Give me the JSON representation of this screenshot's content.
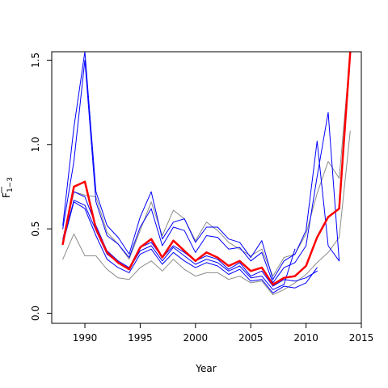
{
  "chart_data": {
    "type": "line",
    "xlabel": "Year",
    "ylabel": "F",
    "ylabel_subscript": "1−3",
    "xlim": [
      1987,
      2015
    ],
    "ylim": [
      -0.06,
      1.55
    ],
    "x_ticks": [
      1990,
      1995,
      2000,
      2005,
      2010,
      2015
    ],
    "y_ticks": [
      0.0,
      0.5,
      1.0,
      1.5
    ],
    "grid": false,
    "colors": {
      "blue": "#0000ff",
      "red": "#ff0000",
      "gray": "#8c8c8c"
    },
    "series": [
      {
        "color": "#8c8c8c",
        "width": 1,
        "x": [
          2013,
          2014
        ],
        "y": [
          0.8,
          1.55
        ]
      },
      {
        "color": "#8c8c8c",
        "width": 1,
        "x": [
          1988,
          1989,
          1990,
          1991,
          1992,
          1993,
          1994,
          1995,
          1996,
          1997,
          1998,
          1999,
          2000,
          2001,
          2002,
          2003,
          2004,
          2005,
          2006,
          2007,
          2008,
          2009,
          2010,
          2011,
          2012,
          2013
        ],
        "y": [
          0.42,
          0.72,
          0.7,
          0.69,
          0.48,
          0.41,
          0.32,
          0.49,
          0.66,
          0.46,
          0.61,
          0.56,
          0.43,
          0.54,
          0.49,
          0.42,
          0.38,
          0.34,
          0.38,
          0.22,
          0.33,
          0.35,
          0.47,
          0.71,
          0.9,
          0.8
        ]
      },
      {
        "color": "#8c8c8c",
        "width": 1,
        "x": [
          1988,
          1989,
          1990,
          1991,
          1992,
          1993,
          1994,
          1995,
          1996,
          1997,
          1998,
          1999,
          2000,
          2001,
          2002,
          2003,
          2004,
          2005,
          2006,
          2007,
          2008,
          2009,
          2010,
          2011,
          2012,
          2013,
          2014
        ],
        "y": [
          0.32,
          0.47,
          0.34,
          0.34,
          0.26,
          0.21,
          0.2,
          0.27,
          0.31,
          0.25,
          0.32,
          0.26,
          0.22,
          0.24,
          0.24,
          0.2,
          0.22,
          0.18,
          0.19,
          0.11,
          0.14,
          0.18,
          0.23,
          0.3,
          0.36,
          0.45,
          1.08
        ]
      },
      {
        "color": "#0000ff",
        "width": 1,
        "x": [
          1988,
          1989,
          1990,
          1991,
          1992,
          1993,
          1994,
          1995,
          1996,
          1997,
          1998,
          1999,
          2000,
          2001,
          2002,
          2003,
          2004,
          2005,
          2006,
          2007,
          2008,
          2009,
          2010,
          2011,
          2012,
          2013
        ],
        "y": [
          0.52,
          1.1,
          1.55,
          0.72,
          0.52,
          0.45,
          0.35,
          0.57,
          0.72,
          0.44,
          0.54,
          0.56,
          0.42,
          0.51,
          0.51,
          0.44,
          0.42,
          0.33,
          0.43,
          0.2,
          0.31,
          0.35,
          0.49,
          1.02,
          0.4,
          0.31
        ]
      },
      {
        "color": "#0000ff",
        "width": 1,
        "x": [
          1988,
          1989,
          1990,
          1991,
          1992,
          1993,
          1994,
          1995,
          1996,
          1997,
          1998,
          1999,
          2000,
          2001,
          2002,
          2003,
          2004,
          2005,
          2006,
          2007,
          2008,
          2009,
          2010,
          2011,
          2012,
          2013
        ],
        "y": [
          0.5,
          0.9,
          1.5,
          0.66,
          0.46,
          0.41,
          0.33,
          0.51,
          0.62,
          0.4,
          0.51,
          0.49,
          0.36,
          0.46,
          0.45,
          0.38,
          0.39,
          0.31,
          0.36,
          0.18,
          0.27,
          0.3,
          0.4,
          0.81,
          1.19,
          0.31
        ]
      },
      {
        "color": "#0000ff",
        "width": 1,
        "x": [
          1988,
          1989,
          1990,
          1991,
          1992,
          1993,
          1994,
          1995,
          1996,
          1997,
          1998,
          1999,
          2000,
          2001,
          2002,
          2003,
          2004,
          2005,
          2006,
          2007,
          2008,
          2009,
          2010,
          2011
        ],
        "y": [
          0.44,
          0.72,
          0.69,
          0.52,
          0.37,
          0.31,
          0.27,
          0.39,
          0.42,
          0.33,
          0.4,
          0.36,
          0.31,
          0.34,
          0.32,
          0.26,
          0.3,
          0.22,
          0.25,
          0.16,
          0.2,
          0.19,
          0.21,
          0.25
        ]
      },
      {
        "color": "#0000ff",
        "width": 1,
        "x": [
          1988,
          1989,
          1990,
          1991,
          1992,
          1993,
          1994,
          1995,
          1996,
          1997,
          1998,
          1999,
          2000,
          2001,
          2002,
          2003,
          2004,
          2005,
          2006,
          2007,
          2008,
          2009
        ],
        "y": [
          0.42,
          0.67,
          0.64,
          0.49,
          0.35,
          0.3,
          0.26,
          0.37,
          0.4,
          0.31,
          0.39,
          0.34,
          0.29,
          0.32,
          0.3,
          0.25,
          0.28,
          0.21,
          0.22,
          0.14,
          0.17,
          0.38
        ]
      },
      {
        "color": "#0000ff",
        "width": 1,
        "x": [
          1988,
          1989,
          1990,
          1991,
          1992,
          1993,
          1994,
          1995,
          1996,
          1997,
          1998,
          1999,
          2000,
          2001,
          2002,
          2003,
          2004,
          2005,
          2006,
          2007,
          2008,
          2009,
          2010,
          2011
        ],
        "y": [
          0.41,
          0.66,
          0.62,
          0.46,
          0.32,
          0.27,
          0.24,
          0.35,
          0.38,
          0.29,
          0.36,
          0.31,
          0.27,
          0.3,
          0.28,
          0.23,
          0.26,
          0.19,
          0.2,
          0.12,
          0.16,
          0.15,
          0.18,
          0.27
        ]
      },
      {
        "color": "#ff0000",
        "width": 2.5,
        "x": [
          1988,
          1989,
          1990,
          1991,
          1992,
          1993,
          1994,
          1995,
          1996,
          1997,
          1998,
          1999,
          2000,
          2001,
          2002,
          2003,
          2004,
          2005,
          2006,
          2007,
          2008,
          2009,
          2010,
          2011,
          2012,
          2013,
          2014
        ],
        "y": [
          0.41,
          0.75,
          0.78,
          0.5,
          0.36,
          0.3,
          0.26,
          0.39,
          0.44,
          0.33,
          0.43,
          0.37,
          0.31,
          0.36,
          0.33,
          0.28,
          0.31,
          0.25,
          0.27,
          0.17,
          0.21,
          0.22,
          0.28,
          0.45,
          0.57,
          0.62,
          1.55
        ]
      }
    ]
  }
}
